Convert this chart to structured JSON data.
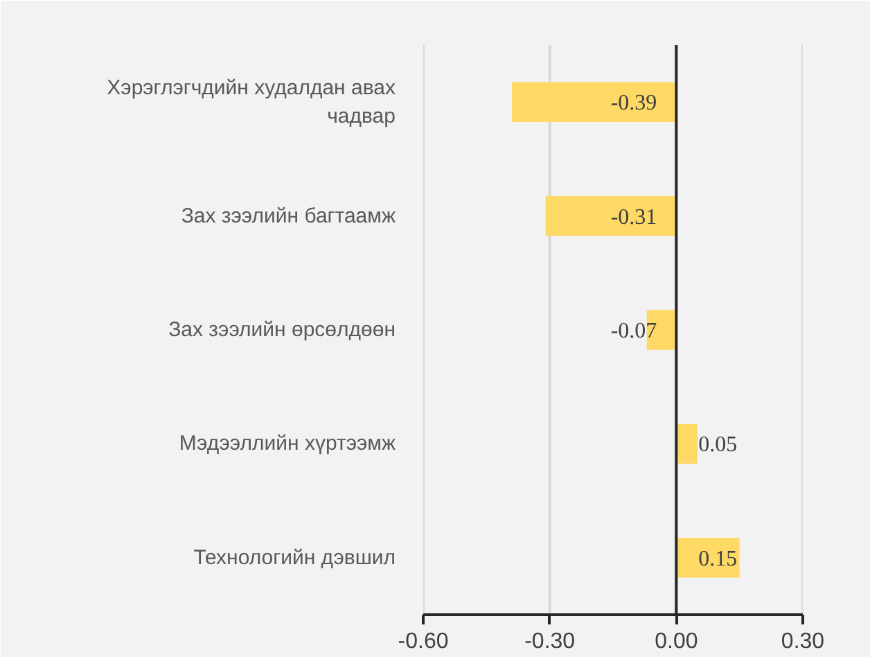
{
  "chart_data": {
    "type": "bar",
    "orientation": "horizontal",
    "categories": [
      "Хэрэглэгчдийн худалдан авах чадвар",
      "Зах зээлийн багтаамж",
      "Зах зээлийн өрсөлдөөн",
      "Мэдээллийн хүртээмж",
      "Технологийн дэвшил"
    ],
    "values": [
      -0.39,
      -0.31,
      -0.07,
      0.05,
      0.15
    ],
    "color": "#ffd966",
    "xlim": [
      -0.6,
      0.3
    ],
    "xticks": [
      {
        "value": -0.6,
        "label": "-0.60"
      },
      {
        "value": -0.3,
        "label": "-0.30"
      },
      {
        "value": 0,
        "label": "0.00"
      },
      {
        "value": 0.3,
        "label": "0.30"
      }
    ],
    "grid": "x",
    "data_labels": true
  }
}
